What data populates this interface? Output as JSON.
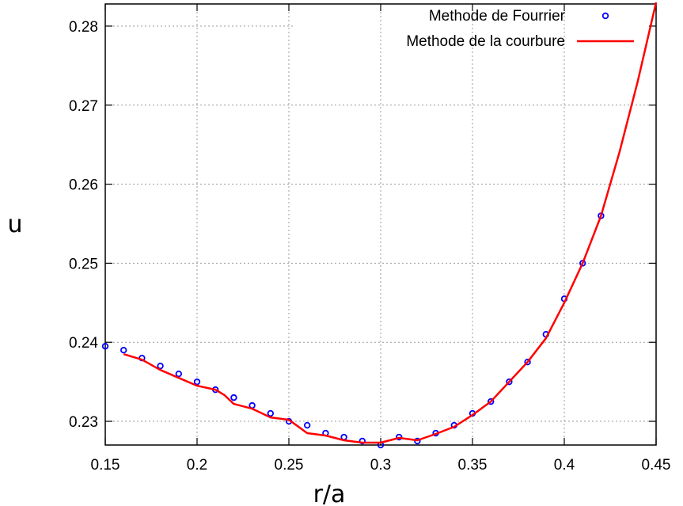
{
  "chart_data": {
    "type": "line",
    "title": "",
    "xlabel": "r/a",
    "ylabel": "u",
    "xlim": [
      0.15,
      0.45
    ],
    "ylim": [
      0.227,
      0.2828
    ],
    "grid": true,
    "legend_position": "top-right",
    "x_ticks": [
      "0.15",
      "0.2",
      "0.25",
      "0.3",
      "0.35",
      "0.4",
      "0.45"
    ],
    "y_ticks": [
      "0.23",
      "0.24",
      "0.25",
      "0.26",
      "0.27",
      "0.28"
    ],
    "series": [
      {
        "name": "Methode de Fourrier",
        "kind": "points",
        "marker": "open-circle",
        "color": "#0000ff",
        "x": [
          0.15,
          0.16,
          0.17,
          0.18,
          0.19,
          0.2,
          0.21,
          0.22,
          0.23,
          0.24,
          0.25,
          0.26,
          0.27,
          0.28,
          0.29,
          0.3,
          0.31,
          0.32,
          0.33,
          0.34,
          0.35,
          0.36,
          0.37,
          0.38,
          0.39,
          0.4,
          0.41,
          0.42
        ],
        "y": [
          0.2395,
          0.239,
          0.238,
          0.237,
          0.236,
          0.235,
          0.234,
          0.233,
          0.232,
          0.231,
          0.23,
          0.2295,
          0.2285,
          0.228,
          0.2275,
          0.227,
          0.228,
          0.2275,
          0.2285,
          0.2295,
          0.231,
          0.2325,
          0.235,
          0.2375,
          0.241,
          0.2455,
          0.25,
          0.256
        ]
      },
      {
        "name": "Methode de la courbure",
        "kind": "line",
        "color": "#ff0000",
        "x": [
          0.16,
          0.17,
          0.18,
          0.19,
          0.2,
          0.21,
          0.215,
          0.22,
          0.23,
          0.24,
          0.25,
          0.26,
          0.27,
          0.28,
          0.29,
          0.3,
          0.31,
          0.32,
          0.33,
          0.34,
          0.35,
          0.36,
          0.37,
          0.38,
          0.39,
          0.4,
          0.41,
          0.42,
          0.43,
          0.44,
          0.45
        ],
        "y": [
          0.2385,
          0.2378,
          0.2365,
          0.2355,
          0.2345,
          0.234,
          0.2333,
          0.2322,
          0.2316,
          0.2305,
          0.2302,
          0.2285,
          0.2282,
          0.2276,
          0.2273,
          0.2273,
          0.2279,
          0.2276,
          0.2284,
          0.2293,
          0.2308,
          0.2325,
          0.235,
          0.2375,
          0.2405,
          0.245,
          0.25,
          0.256,
          0.264,
          0.273,
          0.283
        ]
      }
    ]
  }
}
